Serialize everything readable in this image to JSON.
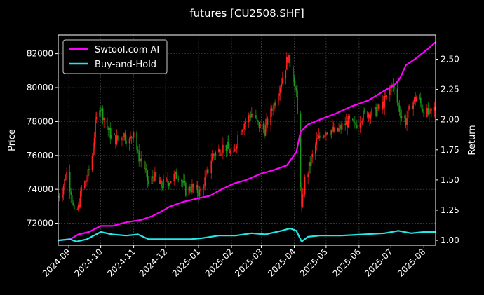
{
  "chart_data": {
    "type": "line",
    "title": "futures [CU2508.SHF]",
    "ylabel_left": "Price",
    "ylabel_right": "Return",
    "grid": true,
    "legend_position": "top-left",
    "background": "#000000",
    "x_ticks": [
      "2024-09",
      "2024-10",
      "2024-11",
      "2024-12",
      "2025-01",
      "2025-02",
      "2025-03",
      "2025-04",
      "2025-05",
      "2025-06",
      "2025-07",
      "2025-08"
    ],
    "x_range": [
      "2024-08-22",
      "2025-08-12"
    ],
    "price_axis": {
      "ylim": [
        70700,
        83100
      ],
      "ticks": [
        72000,
        74000,
        76000,
        78000,
        80000,
        82000
      ]
    },
    "return_axis": {
      "ylim": [
        0.96,
        2.7
      ],
      "ticks": [
        1.0,
        1.25,
        1.5,
        1.75,
        2.0,
        2.25,
        2.5
      ]
    },
    "candle_colors": {
      "up": "#ff2020",
      "down": "#1a9a1a"
    },
    "price_path": [
      [
        "2024-08-22",
        73600
      ],
      [
        "2024-08-26",
        74000
      ],
      [
        "2024-08-30",
        75000
      ],
      [
        "2024-09-03",
        73900
      ],
      [
        "2024-09-06",
        72500
      ],
      [
        "2024-09-10",
        72900
      ],
      [
        "2024-09-13",
        74000
      ],
      [
        "2024-09-18",
        74600
      ],
      [
        "2024-09-23",
        76000
      ],
      [
        "2024-09-26",
        77800
      ],
      [
        "2024-09-30",
        79000
      ],
      [
        "2024-10-08",
        77500
      ],
      [
        "2024-10-12",
        77000
      ],
      [
        "2024-10-18",
        76900
      ],
      [
        "2024-10-22",
        77300
      ],
      [
        "2024-10-28",
        76800
      ],
      [
        "2024-11-01",
        77500
      ],
      [
        "2024-11-05",
        76000
      ],
      [
        "2024-11-10",
        75500
      ],
      [
        "2024-11-15",
        74300
      ],
      [
        "2024-11-20",
        74800
      ],
      [
        "2024-11-26",
        74200
      ],
      [
        "2024-12-02",
        74400
      ],
      [
        "2024-12-08",
        74700
      ],
      [
        "2024-12-14",
        74900
      ],
      [
        "2024-12-20",
        73900
      ],
      [
        "2024-12-26",
        74100
      ],
      [
        "2025-01-02",
        73800
      ],
      [
        "2025-01-08",
        74700
      ],
      [
        "2025-01-14",
        76000
      ],
      [
        "2025-01-20",
        76300
      ],
      [
        "2025-01-26",
        76600
      ],
      [
        "2025-02-03",
        75900
      ],
      [
        "2025-02-08",
        77500
      ],
      [
        "2025-02-14",
        78000
      ],
      [
        "2025-02-20",
        78500
      ],
      [
        "2025-02-26",
        77800
      ],
      [
        "2025-03-04",
        77500
      ],
      [
        "2025-03-10",
        78500
      ],
      [
        "2025-03-16",
        79600
      ],
      [
        "2025-03-22",
        80800
      ],
      [
        "2025-03-26",
        81800
      ],
      [
        "2025-03-31",
        80800
      ],
      [
        "2025-04-03",
        79500
      ],
      [
        "2025-04-06",
        76000
      ],
      [
        "2025-04-08",
        72800
      ],
      [
        "2025-04-11",
        74500
      ],
      [
        "2025-04-16",
        75500
      ],
      [
        "2025-04-22",
        76800
      ],
      [
        "2025-04-28",
        77300
      ],
      [
        "2025-05-04",
        77600
      ],
      [
        "2025-05-10",
        77300
      ],
      [
        "2025-05-16",
        77700
      ],
      [
        "2025-05-22",
        78000
      ],
      [
        "2025-05-28",
        77700
      ],
      [
        "2025-06-03",
        78300
      ],
      [
        "2025-06-09",
        78500
      ],
      [
        "2025-06-15",
        78500
      ],
      [
        "2025-06-21",
        78800
      ],
      [
        "2025-06-27",
        79400
      ],
      [
        "2025-07-02",
        80300
      ],
      [
        "2025-07-06",
        79300
      ],
      [
        "2025-07-10",
        78500
      ],
      [
        "2025-07-15",
        78000
      ],
      [
        "2025-07-20",
        79000
      ],
      [
        "2025-07-26",
        79500
      ],
      [
        "2025-08-01",
        78600
      ],
      [
        "2025-08-06",
        78400
      ],
      [
        "2025-08-12",
        78800
      ]
    ],
    "series": [
      {
        "name": "Swtool.com AI",
        "color": "#ff00ff",
        "axis": "return",
        "points": [
          [
            "2024-08-22",
            1.0
          ],
          [
            "2024-09-02",
            1.01
          ],
          [
            "2024-09-10",
            1.05
          ],
          [
            "2024-09-20",
            1.07
          ],
          [
            "2024-10-01",
            1.12
          ],
          [
            "2024-10-12",
            1.12
          ],
          [
            "2024-10-25",
            1.15
          ],
          [
            "2024-11-08",
            1.17
          ],
          [
            "2024-11-18",
            1.2
          ],
          [
            "2024-11-25",
            1.23
          ],
          [
            "2024-12-05",
            1.28
          ],
          [
            "2024-12-18",
            1.32
          ],
          [
            "2025-01-01",
            1.35
          ],
          [
            "2025-01-12",
            1.37
          ],
          [
            "2025-01-22",
            1.42
          ],
          [
            "2025-02-03",
            1.47
          ],
          [
            "2025-02-15",
            1.5
          ],
          [
            "2025-02-28",
            1.55
          ],
          [
            "2025-03-12",
            1.58
          ],
          [
            "2025-03-25",
            1.62
          ],
          [
            "2025-04-03",
            1.73
          ],
          [
            "2025-04-07",
            1.9
          ],
          [
            "2025-04-14",
            1.96
          ],
          [
            "2025-04-25",
            2.0
          ],
          [
            "2025-05-10",
            2.05
          ],
          [
            "2025-05-25",
            2.11
          ],
          [
            "2025-06-10",
            2.16
          ],
          [
            "2025-06-25",
            2.24
          ],
          [
            "2025-07-05",
            2.29
          ],
          [
            "2025-07-10",
            2.35
          ],
          [
            "2025-07-15",
            2.45
          ],
          [
            "2025-07-25",
            2.51
          ],
          [
            "2025-08-04",
            2.58
          ],
          [
            "2025-08-12",
            2.64
          ]
        ]
      },
      {
        "name": "Buy-and-Hold",
        "color": "#22e8e8",
        "axis": "return",
        "points": [
          [
            "2024-08-22",
            1.0
          ],
          [
            "2024-09-02",
            1.01
          ],
          [
            "2024-09-08",
            0.99
          ],
          [
            "2024-09-18",
            1.01
          ],
          [
            "2024-10-01",
            1.07
          ],
          [
            "2024-10-12",
            1.05
          ],
          [
            "2024-10-25",
            1.04
          ],
          [
            "2024-11-05",
            1.05
          ],
          [
            "2024-11-15",
            1.01
          ],
          [
            "2024-11-25",
            1.01
          ],
          [
            "2024-12-10",
            1.01
          ],
          [
            "2024-12-25",
            1.01
          ],
          [
            "2025-01-05",
            1.02
          ],
          [
            "2025-01-20",
            1.04
          ],
          [
            "2025-02-05",
            1.04
          ],
          [
            "2025-02-20",
            1.06
          ],
          [
            "2025-03-05",
            1.05
          ],
          [
            "2025-03-20",
            1.08
          ],
          [
            "2025-03-28",
            1.1
          ],
          [
            "2025-04-03",
            1.08
          ],
          [
            "2025-04-08",
            0.99
          ],
          [
            "2025-04-14",
            1.03
          ],
          [
            "2025-04-25",
            1.04
          ],
          [
            "2025-05-15",
            1.04
          ],
          [
            "2025-06-05",
            1.05
          ],
          [
            "2025-06-25",
            1.06
          ],
          [
            "2025-07-08",
            1.08
          ],
          [
            "2025-07-20",
            1.06
          ],
          [
            "2025-08-01",
            1.07
          ],
          [
            "2025-08-12",
            1.07
          ]
        ]
      }
    ]
  }
}
